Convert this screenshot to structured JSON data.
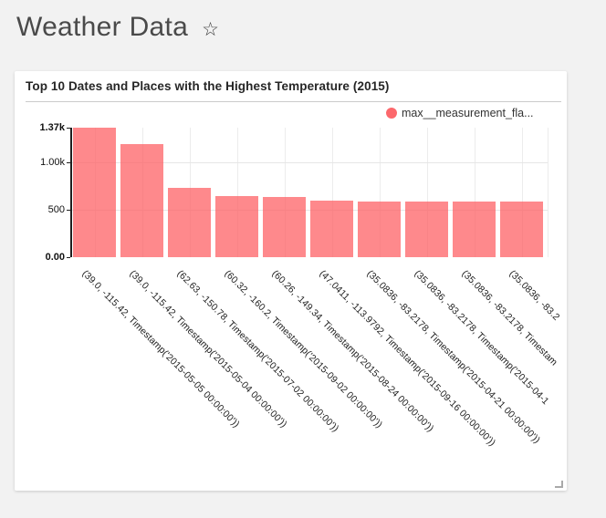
{
  "page": {
    "title": "Weather Data",
    "favorite_icon": "star-outline",
    "favorite_glyph": "☆",
    "background_color": "#f2f2f2"
  },
  "chart_data": {
    "type": "bar",
    "title": "Top 10 Dates and Places with the Highest Temperature (2015)",
    "xlabel": "",
    "ylabel": "",
    "ylim": [
      0,
      1370
    ],
    "yticks": [
      {
        "label": "1.37k",
        "value": 1370,
        "bold": true
      },
      {
        "label": "1.00k",
        "value": 1000,
        "bold": false
      },
      {
        "label": "500",
        "value": 500,
        "bold": false
      },
      {
        "label": "0.00",
        "value": 0,
        "bold": true
      }
    ],
    "categories": [
      "(39.0, -115.42, Timestamp('2015-05-05 00:00:00'))",
      "(39.0, -115.42, Timestamp('2015-05-04 00:00:00'))",
      "(62.63, -150.78, Timestamp('2015-07-02 00:00:00'))",
      "(60.32, -160.2, Timestamp('2015-09-02 00:00:00'))",
      "(60.26, -149.34, Timestamp('2015-08-24 00:00:00'))",
      "(47.0411, -113.9792, Timestamp('2015-09-16 00:00:00'))",
      "(35.0836, -83.2178, Timestamp('2015-04-21 00:00:00'))",
      "(35.0836, -83.2178, Timestamp('2015-04-1",
      "(35.0836, -83.2178, Timestam",
      "(35.0836, -83.2"
    ],
    "series": [
      {
        "name": "max__measurement_fla...",
        "color": "#fc686c",
        "bar_fill": "rgba(253,98,102,0.75)",
        "values": [
          1370,
          1200,
          730,
          645,
          635,
          600,
          590,
          590,
          588,
          586
        ]
      }
    ],
    "grid": {
      "horizontal_at": [
        1000,
        500
      ],
      "vertical": "category-centers"
    },
    "legend_position": "top-right",
    "xlabel_rotation_deg": 45
  }
}
